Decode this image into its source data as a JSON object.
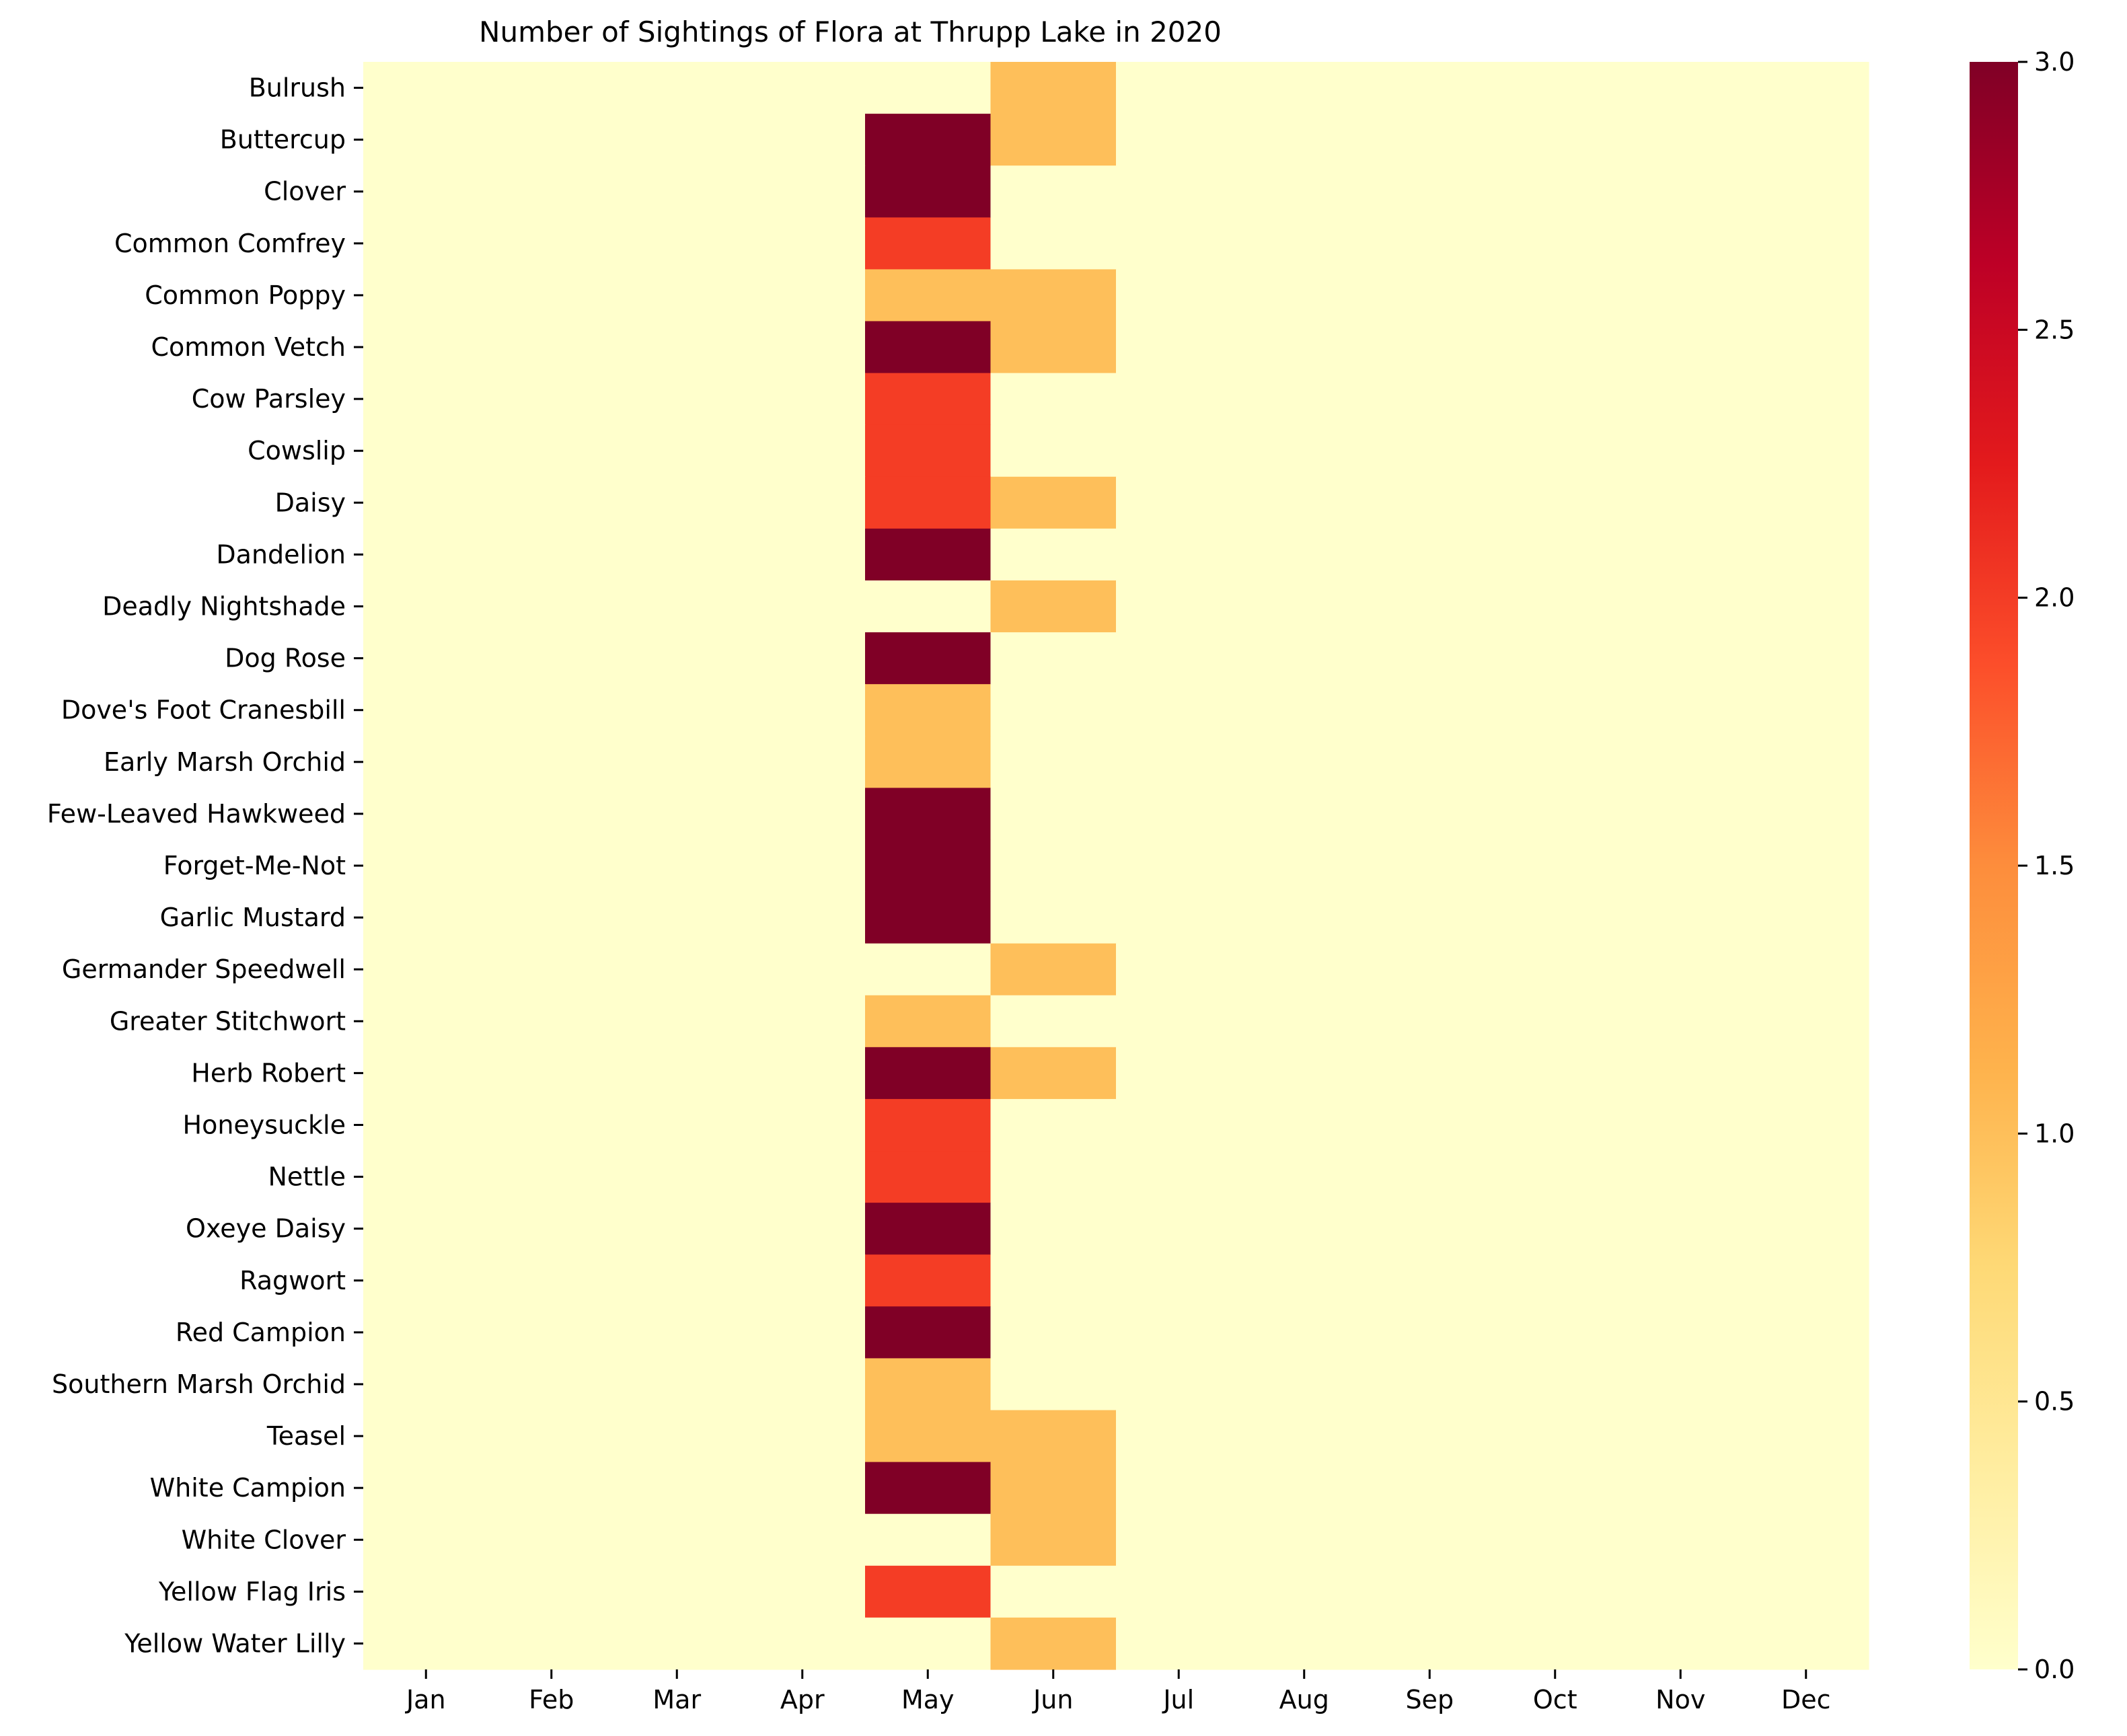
{
  "chart_data": {
    "type": "heatmap",
    "title": "Number of Sightings of Flora at Thrupp Lake in 2020",
    "xlabel": "",
    "ylabel": "",
    "x_categories": [
      "Jan",
      "Feb",
      "Mar",
      "Apr",
      "May",
      "Jun",
      "Jul",
      "Aug",
      "Sep",
      "Oct",
      "Nov",
      "Dec"
    ],
    "y_categories": [
      "Bulrush",
      "Buttercup",
      "Clover",
      "Common Comfrey",
      "Common Poppy",
      "Common Vetch",
      "Cow Parsley",
      "Cowslip",
      "Daisy",
      "Dandelion",
      "Deadly Nightshade",
      "Dog Rose",
      "Dove's Foot Cranesbill",
      "Early Marsh Orchid",
      "Few-Leaved Hawkweed",
      "Forget-Me-Not",
      "Garlic Mustard",
      "Germander Speedwell",
      "Greater Stitchwort",
      "Herb Robert",
      "Honeysuckle",
      "Nettle",
      "Oxeye Daisy",
      "Ragwort",
      "Red Campion",
      "Southern Marsh Orchid",
      "Teasel",
      "White Campion",
      "White Clover",
      "Yellow Flag Iris",
      "Yellow Water Lilly"
    ],
    "values": [
      [
        0,
        0,
        0,
        0,
        0,
        1,
        0,
        0,
        0,
        0,
        0,
        0
      ],
      [
        0,
        0,
        0,
        0,
        3,
        1,
        0,
        0,
        0,
        0,
        0,
        0
      ],
      [
        0,
        0,
        0,
        0,
        3,
        0,
        0,
        0,
        0,
        0,
        0,
        0
      ],
      [
        0,
        0,
        0,
        0,
        2,
        0,
        0,
        0,
        0,
        0,
        0,
        0
      ],
      [
        0,
        0,
        0,
        0,
        1,
        1,
        0,
        0,
        0,
        0,
        0,
        0
      ],
      [
        0,
        0,
        0,
        0,
        3,
        1,
        0,
        0,
        0,
        0,
        0,
        0
      ],
      [
        0,
        0,
        0,
        0,
        2,
        0,
        0,
        0,
        0,
        0,
        0,
        0
      ],
      [
        0,
        0,
        0,
        0,
        2,
        0,
        0,
        0,
        0,
        0,
        0,
        0
      ],
      [
        0,
        0,
        0,
        0,
        2,
        1,
        0,
        0,
        0,
        0,
        0,
        0
      ],
      [
        0,
        0,
        0,
        0,
        3,
        0,
        0,
        0,
        0,
        0,
        0,
        0
      ],
      [
        0,
        0,
        0,
        0,
        0,
        1,
        0,
        0,
        0,
        0,
        0,
        0
      ],
      [
        0,
        0,
        0,
        0,
        3,
        0,
        0,
        0,
        0,
        0,
        0,
        0
      ],
      [
        0,
        0,
        0,
        0,
        1,
        0,
        0,
        0,
        0,
        0,
        0,
        0
      ],
      [
        0,
        0,
        0,
        0,
        1,
        0,
        0,
        0,
        0,
        0,
        0,
        0
      ],
      [
        0,
        0,
        0,
        0,
        3,
        0,
        0,
        0,
        0,
        0,
        0,
        0
      ],
      [
        0,
        0,
        0,
        0,
        3,
        0,
        0,
        0,
        0,
        0,
        0,
        0
      ],
      [
        0,
        0,
        0,
        0,
        3,
        0,
        0,
        0,
        0,
        0,
        0,
        0
      ],
      [
        0,
        0,
        0,
        0,
        0,
        1,
        0,
        0,
        0,
        0,
        0,
        0
      ],
      [
        0,
        0,
        0,
        0,
        1,
        0,
        0,
        0,
        0,
        0,
        0,
        0
      ],
      [
        0,
        0,
        0,
        0,
        3,
        1,
        0,
        0,
        0,
        0,
        0,
        0
      ],
      [
        0,
        0,
        0,
        0,
        2,
        0,
        0,
        0,
        0,
        0,
        0,
        0
      ],
      [
        0,
        0,
        0,
        0,
        2,
        0,
        0,
        0,
        0,
        0,
        0,
        0
      ],
      [
        0,
        0,
        0,
        0,
        3,
        0,
        0,
        0,
        0,
        0,
        0,
        0
      ],
      [
        0,
        0,
        0,
        0,
        2,
        0,
        0,
        0,
        0,
        0,
        0,
        0
      ],
      [
        0,
        0,
        0,
        0,
        3,
        0,
        0,
        0,
        0,
        0,
        0,
        0
      ],
      [
        0,
        0,
        0,
        0,
        1,
        0,
        0,
        0,
        0,
        0,
        0,
        0
      ],
      [
        0,
        0,
        0,
        0,
        1,
        1,
        0,
        0,
        0,
        0,
        0,
        0
      ],
      [
        0,
        0,
        0,
        0,
        3,
        1,
        0,
        0,
        0,
        0,
        0,
        0
      ],
      [
        0,
        0,
        0,
        0,
        0,
        1,
        0,
        0,
        0,
        0,
        0,
        0
      ],
      [
        0,
        0,
        0,
        0,
        2,
        0,
        0,
        0,
        0,
        0,
        0,
        0
      ],
      [
        0,
        0,
        0,
        0,
        0,
        1,
        0,
        0,
        0,
        0,
        0,
        0
      ]
    ],
    "colormap": "YlOrRd",
    "color_stops": [
      "#ffffcc",
      "#ffeda0",
      "#fed976",
      "#feb24c",
      "#fd8d3c",
      "#fc4e2a",
      "#e31a1c",
      "#bd0026",
      "#800026"
    ],
    "vmin": 0,
    "vmax": 3,
    "colorbar_ticks": [
      "0.0",
      "0.5",
      "1.0",
      "1.5",
      "2.0",
      "2.5",
      "3.0"
    ],
    "grid": false,
    "legend": "colorbar-right"
  }
}
